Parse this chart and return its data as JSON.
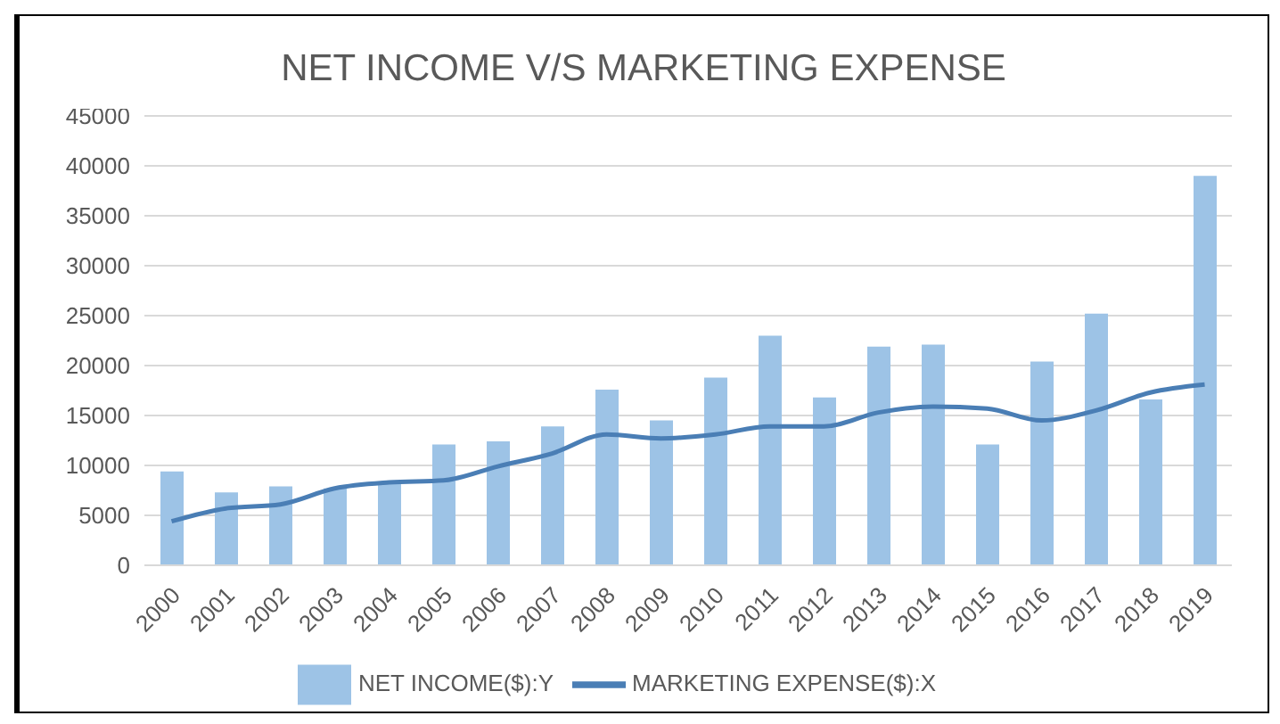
{
  "chart_data": {
    "type": "bar",
    "title": "NET INCOME V/S MARKETING EXPENSE",
    "categories": [
      "2000",
      "2001",
      "2002",
      "2003",
      "2004",
      "2005",
      "2006",
      "2007",
      "2008",
      "2009",
      "2010",
      "2011",
      "2012",
      "2013",
      "2014",
      "2015",
      "2016",
      "2017",
      "2018",
      "2019"
    ],
    "series": [
      {
        "name": "NET INCOME($):Y",
        "color": "#9dc3e6",
        "values": [
          9400,
          7300,
          7900,
          7700,
          8200,
          12100,
          12400,
          13900,
          17600,
          14500,
          18800,
          23000,
          16800,
          21900,
          22100,
          12100,
          20400,
          25200,
          16600,
          39000
        ]
      },
      {
        "name": "MARKETING EXPENSE($):X",
        "type": "line",
        "color": "#4a7eb5",
        "values": [
          4400,
          5700,
          6100,
          7700,
          8300,
          8500,
          9900,
          11200,
          13100,
          12700,
          13100,
          13900,
          13900,
          15300,
          15900,
          15700,
          14500,
          15500,
          17300,
          18100
        ]
      }
    ],
    "ylim": [
      0,
      45000
    ],
    "yticks": [
      0,
      5000,
      10000,
      15000,
      20000,
      25000,
      30000,
      35000,
      40000,
      45000
    ],
    "grid": "y",
    "legend": "bottom",
    "marker": "none",
    "line_style": "solid"
  }
}
